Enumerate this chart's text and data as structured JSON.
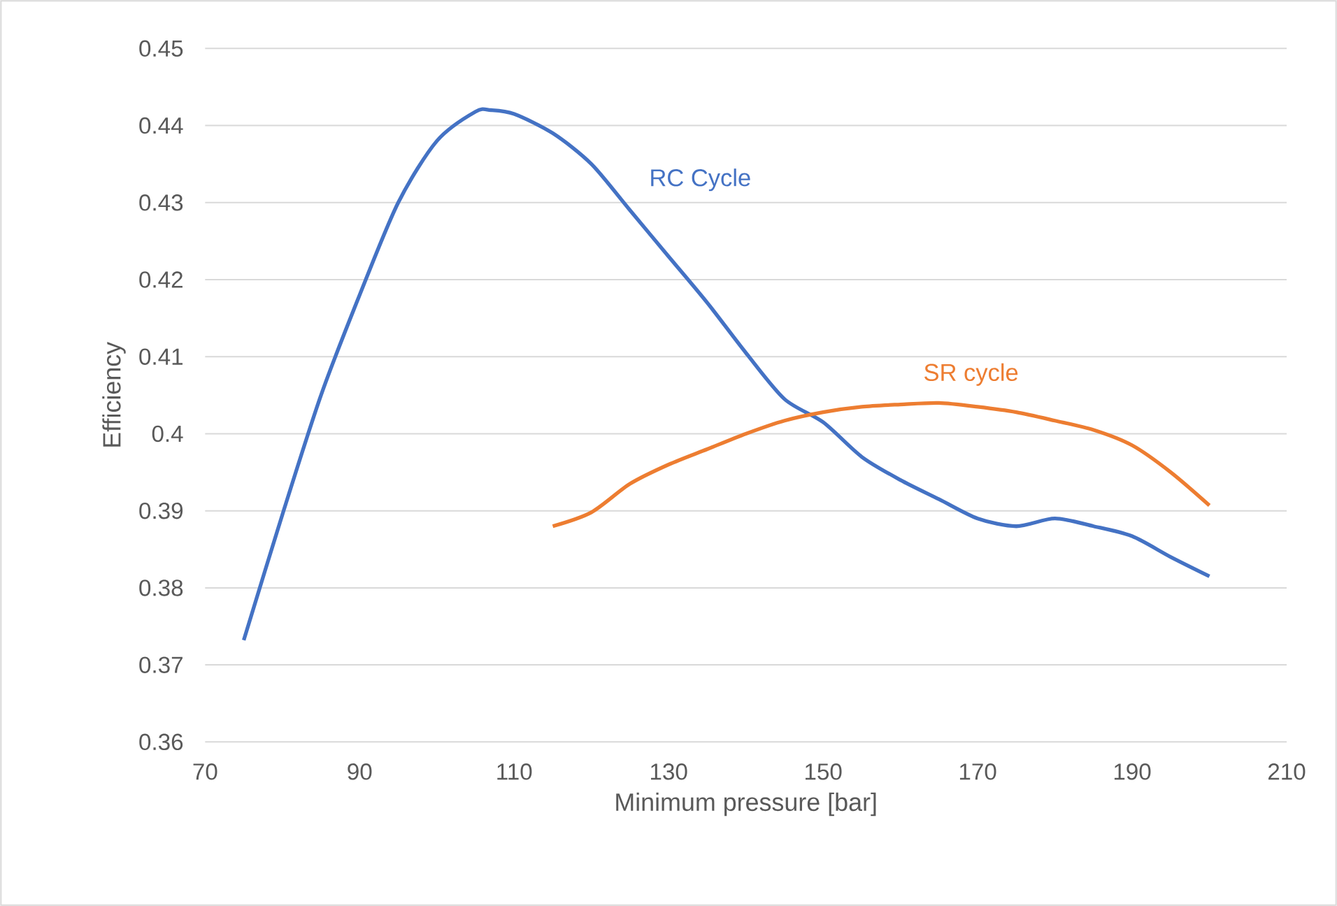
{
  "chart_data": {
    "type": "line",
    "xlabel": "Minimum pressure [bar]",
    "ylabel": "Efficiency",
    "xlim": [
      70,
      210
    ],
    "xticks": [
      70,
      90,
      110,
      130,
      150,
      170,
      190,
      210
    ],
    "ylim": [
      0.36,
      0.45
    ],
    "yticks": [
      0.36,
      0.37,
      0.38,
      0.39,
      0.4,
      0.41,
      0.42,
      0.43,
      0.44,
      0.45
    ],
    "grid": "y",
    "legend": false,
    "marker": "none",
    "line_style": "solid",
    "series": [
      {
        "name": "RC Cycle",
        "color": "#4472c4",
        "x": [
          75,
          80,
          85,
          90,
          95,
          100,
          105,
          107,
          110,
          115,
          120,
          125,
          130,
          135,
          140,
          145,
          150,
          155,
          160,
          165,
          170,
          175,
          180,
          185,
          190,
          195,
          200
        ],
        "values": [
          0.3732,
          0.3895,
          0.405,
          0.418,
          0.43,
          0.438,
          0.4418,
          0.442,
          0.4415,
          0.439,
          0.435,
          0.429,
          0.423,
          0.417,
          0.4105,
          0.4045,
          0.4015,
          0.397,
          0.394,
          0.3915,
          0.389,
          0.388,
          0.389,
          0.388,
          0.3867,
          0.384,
          0.3815
        ]
      },
      {
        "name": "SR cycle",
        "color": "#ed7d31",
        "x": [
          115,
          120,
          125,
          130,
          135,
          140,
          145,
          150,
          155,
          160,
          165,
          170,
          175,
          180,
          185,
          190,
          195,
          200
        ],
        "values": [
          0.388,
          0.3898,
          0.3935,
          0.396,
          0.398,
          0.4,
          0.4017,
          0.4028,
          0.4035,
          0.4038,
          0.404,
          0.4035,
          0.4028,
          0.4017,
          0.4005,
          0.3985,
          0.395,
          0.3907
        ]
      }
    ]
  }
}
